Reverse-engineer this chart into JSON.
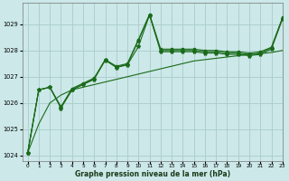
{
  "title": "Graphe pression niveau de la mer (hPa)",
  "bg_color": "#cce8e8",
  "grid_color": "#aacccc",
  "line_color": "#1a6b1a",
  "marker_color": "#1a6b1a",
  "xlim": [
    -0.5,
    23
  ],
  "ylim": [
    1023.8,
    1029.8
  ],
  "yticks": [
    1024,
    1025,
    1026,
    1027,
    1028,
    1029
  ],
  "xticks": [
    0,
    1,
    2,
    3,
    4,
    5,
    6,
    7,
    8,
    9,
    10,
    11,
    12,
    13,
    14,
    15,
    16,
    17,
    18,
    19,
    20,
    21,
    22,
    23
  ],
  "series1": [
    1024.1,
    1026.5,
    1026.6,
    1025.8,
    1026.5,
    1026.7,
    1026.9,
    1027.65,
    1027.35,
    1027.45,
    1028.15,
    1029.35,
    1027.95,
    1027.95,
    1027.95,
    1027.95,
    1027.9,
    1027.9,
    1027.85,
    1027.85,
    1027.8,
    1027.85,
    1028.05,
    1029.2
  ],
  "series2": [
    1024.1,
    1026.5,
    1026.6,
    1025.85,
    1026.5,
    1026.72,
    1026.92,
    1027.62,
    1027.37,
    1027.47,
    1028.38,
    1029.35,
    1028.0,
    1028.0,
    1028.0,
    1028.0,
    1027.95,
    1027.95,
    1027.9,
    1027.9,
    1027.85,
    1027.9,
    1028.1,
    1029.22
  ],
  "series3": [
    1024.1,
    1026.5,
    1026.6,
    1025.85,
    1026.55,
    1026.75,
    1026.95,
    1027.65,
    1027.4,
    1027.5,
    1028.42,
    1029.38,
    1028.05,
    1028.05,
    1028.05,
    1028.05,
    1028.0,
    1028.0,
    1027.95,
    1027.95,
    1027.9,
    1027.95,
    1028.12,
    1029.25
  ],
  "series_smooth": [
    1024.1,
    1025.2,
    1026.0,
    1026.3,
    1026.5,
    1026.6,
    1026.7,
    1026.8,
    1026.9,
    1027.0,
    1027.1,
    1027.2,
    1027.3,
    1027.4,
    1027.5,
    1027.6,
    1027.65,
    1027.7,
    1027.75,
    1027.8,
    1027.85,
    1027.88,
    1027.92,
    1028.0
  ]
}
